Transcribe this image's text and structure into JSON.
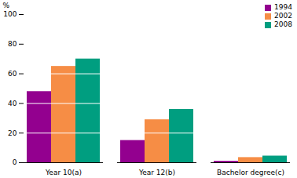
{
  "chart_data": {
    "type": "bar",
    "categories": [
      "Year 10(a)",
      "Year 12(b)",
      "Bachelor degree(c)"
    ],
    "series": [
      {
        "name": "1994",
        "color": "#93008f",
        "values": [
          48,
          15,
          1
        ]
      },
      {
        "name": "2002",
        "color": "#f68d45",
        "values": [
          65,
          29,
          3.5
        ]
      },
      {
        "name": "2008",
        "color": "#009e80",
        "values": [
          70,
          36,
          4.5
        ]
      }
    ],
    "ylabel": "%",
    "ylim": [
      0,
      100
    ],
    "yticks": [
      0,
      20,
      40,
      60,
      80,
      100
    ],
    "grid": true,
    "legend": "top-right"
  }
}
